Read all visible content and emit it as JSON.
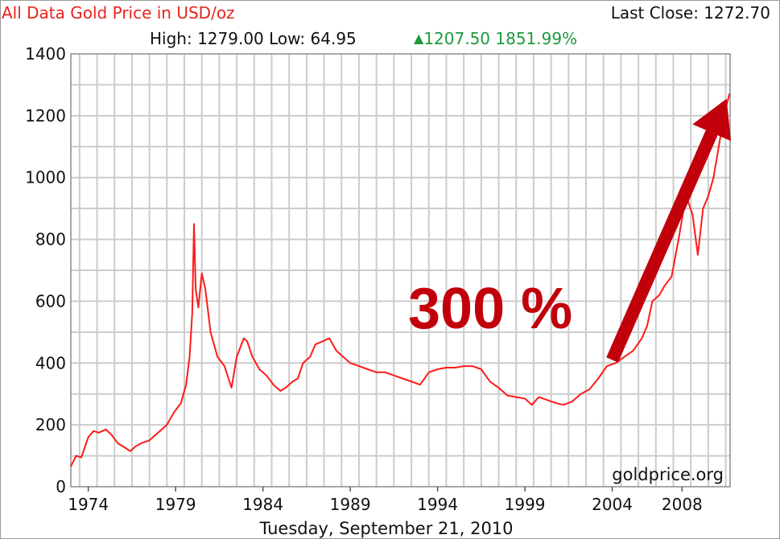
{
  "header": {
    "title": "All Data Gold Price in USD/oz",
    "last_close_label": "Last Close: 1272.70",
    "stats_text": "High: 1279.00 Low: 64.95",
    "change_icon": "triangle-up-icon",
    "change_text": "1207.50 1851.99%"
  },
  "chart_data": {
    "type": "line",
    "title": "All Data Gold Price in USD/oz",
    "xlabel": "Tuesday, September 21, 2010",
    "ylabel": "",
    "xlim": [
      1973.0,
      2010.75
    ],
    "ylim": [
      0,
      1400
    ],
    "y_ticks": [
      0,
      200,
      400,
      600,
      800,
      1000,
      1200,
      1400
    ],
    "x_tick_labels": [
      "1974",
      "1979",
      "1984",
      "1989",
      "1994",
      "1999",
      "2004",
      "2008"
    ],
    "x_tick_values": [
      1974,
      1979,
      1984,
      1989,
      1994,
      1999,
      2004,
      2008
    ],
    "grid": true,
    "series": [
      {
        "color": "#ff1a1a",
        "x": [
          1973.0,
          1973.3,
          1973.6,
          1974.0,
          1974.3,
          1974.6,
          1975.0,
          1975.3,
          1975.7,
          1976.0,
          1976.4,
          1976.7,
          1977.0,
          1977.5,
          1978.0,
          1978.5,
          1978.9,
          1979.3,
          1979.6,
          1979.8,
          1979.95,
          1980.05,
          1980.15,
          1980.3,
          1980.5,
          1980.7,
          1981.0,
          1981.4,
          1981.8,
          1982.2,
          1982.5,
          1982.9,
          1983.1,
          1983.4,
          1983.8,
          1984.2,
          1984.6,
          1985.0,
          1985.3,
          1985.7,
          1986.0,
          1986.3,
          1986.7,
          1987.0,
          1987.4,
          1987.8,
          1988.2,
          1988.6,
          1989.0,
          1989.5,
          1990.0,
          1990.5,
          1991.0,
          1991.5,
          1992.0,
          1992.5,
          1993.0,
          1993.5,
          1994.0,
          1994.5,
          1995.0,
          1995.5,
          1996.0,
          1996.5,
          1997.0,
          1997.5,
          1998.0,
          1998.5,
          1999.0,
          1999.4,
          1999.8,
          2000.3,
          2000.8,
          2001.2,
          2001.7,
          2002.2,
          2002.7,
          2003.2,
          2003.7,
          2004.2,
          2004.7,
          2005.2,
          2005.7,
          2006.0,
          2006.3,
          2006.7,
          2007.0,
          2007.4,
          2007.8,
          2008.1,
          2008.3,
          2008.6,
          2008.9,
          2009.2,
          2009.5,
          2009.8,
          2010.1,
          2010.4,
          2010.72
        ],
        "y": [
          65,
          100,
          95,
          160,
          180,
          175,
          185,
          170,
          140,
          130,
          115,
          130,
          140,
          150,
          175,
          200,
          240,
          270,
          330,
          420,
          560,
          850,
          640,
          580,
          690,
          640,
          500,
          420,
          390,
          320,
          420,
          480,
          470,
          420,
          380,
          360,
          330,
          310,
          320,
          340,
          350,
          400,
          420,
          460,
          470,
          480,
          440,
          420,
          400,
          390,
          380,
          370,
          370,
          360,
          350,
          340,
          330,
          370,
          380,
          385,
          385,
          390,
          390,
          380,
          340,
          320,
          295,
          290,
          285,
          265,
          290,
          280,
          270,
          265,
          275,
          300,
          315,
          350,
          390,
          400,
          420,
          440,
          480,
          520,
          600,
          620,
          650,
          680,
          800,
          900,
          930,
          880,
          750,
          900,
          940,
          1000,
          1100,
          1200,
          1272
        ]
      }
    ],
    "annotation": {
      "text": "300 %",
      "arrow_color": "#c1000b",
      "arrow_from": [
        2004.0,
        410
      ],
      "arrow_to": [
        2010.55,
        1255
      ]
    },
    "credit": "goldprice.org"
  }
}
